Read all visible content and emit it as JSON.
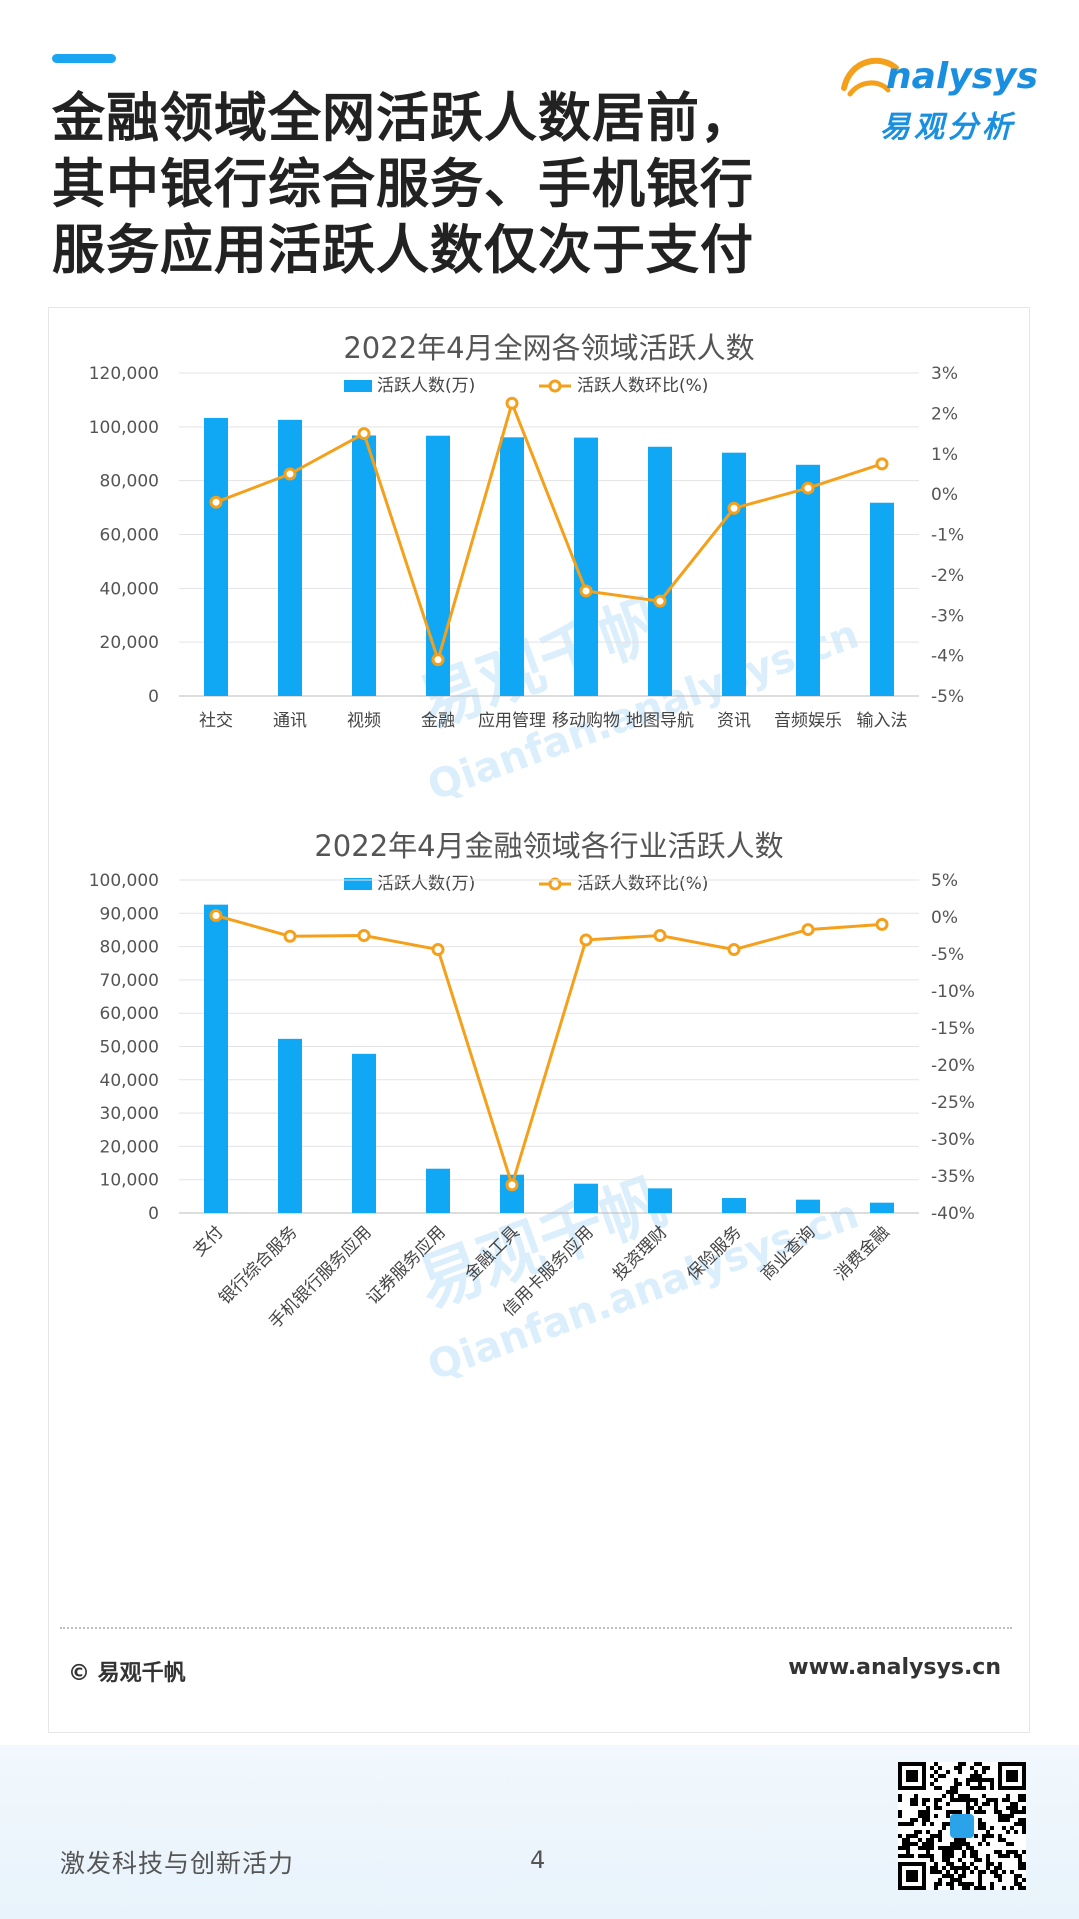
{
  "header": {
    "headline_lines": [
      "金融领域全网活跃人数居前，",
      "其中银行综合服务、手机银行",
      "服务应用活跃人数仅次于支付"
    ]
  },
  "logo": {
    "text": "nalysys",
    "cn": "易观分析"
  },
  "watermark": {
    "cn": "易观千帆",
    "en": "Qianfan.analysys.cn"
  },
  "colors": {
    "bar": "#10a8f5",
    "line": "#f5a01b",
    "accent": "#1aa5f0",
    "text": "#333333"
  },
  "chart_data": [
    {
      "type": "bar",
      "title": "2022年4月全网各领域活跃人数",
      "legend": [
        "活跃人数(万)",
        "活跃人数环比(%)"
      ],
      "legend_position": "top",
      "categories": [
        "社交",
        "通讯",
        "视频",
        "金融",
        "应用管理",
        "移动购物",
        "地图导航",
        "资讯",
        "音频娱乐",
        "输入法"
      ],
      "series": [
        {
          "name": "活跃人数(万)",
          "type": "bar",
          "axis": "left",
          "values": [
            103300,
            102600,
            96800,
            96700,
            96100,
            96000,
            92600,
            90400,
            85900,
            71800
          ]
        },
        {
          "name": "活跃人数环比(%)",
          "type": "line",
          "axis": "right",
          "values": [
            -0.2,
            0.5,
            1.5,
            -4.1,
            2.25,
            -2.4,
            -2.65,
            -0.35,
            0.15,
            0.75
          ]
        }
      ],
      "ylim": [
        0,
        120000
      ],
      "y_ticks": [
        "0",
        "20,000",
        "40,000",
        "60,000",
        "80,000",
        "100,000",
        "120,000"
      ],
      "y2lim": [
        -5,
        3
      ],
      "y2_ticks": [
        "-5%",
        "-4%",
        "-3%",
        "-2%",
        "-1%",
        "0%",
        "1%",
        "2%",
        "3%"
      ],
      "grid": true
    },
    {
      "type": "bar",
      "title": "2022年4月金融领域各行业活跃人数",
      "legend": [
        "活跃人数(万)",
        "活跃人数环比(%)"
      ],
      "legend_position": "top",
      "categories": [
        "支付",
        "银行综合服务",
        "手机银行服务应用",
        "证券服务应用",
        "金融工具",
        "信用卡服务应用",
        "投资理财",
        "保险服务",
        "商业查询",
        "消费金融"
      ],
      "series": [
        {
          "name": "活跃人数(万)",
          "type": "bar",
          "axis": "left",
          "values": [
            92600,
            52300,
            47800,
            13300,
            11500,
            8800,
            7400,
            4500,
            4000,
            3100
          ]
        },
        {
          "name": "活跃人数环比(%)",
          "type": "line",
          "axis": "right",
          "values": [
            0.2,
            -2.6,
            -2.5,
            -4.4,
            -36.2,
            -3.1,
            -2.5,
            -4.4,
            -1.7,
            -1.0
          ]
        }
      ],
      "ylim": [
        0,
        100000
      ],
      "y_ticks": [
        "0",
        "10,000",
        "20,000",
        "30,000",
        "40,000",
        "50,000",
        "60,000",
        "70,000",
        "80,000",
        "90,000",
        "100,000"
      ],
      "y2lim": [
        -40,
        5
      ],
      "y2_ticks": [
        "-40%",
        "-35%",
        "-30%",
        "-25%",
        "-20%",
        "-15%",
        "-10%",
        "-5%",
        "0%",
        "5%"
      ],
      "grid": true
    }
  ],
  "footer": {
    "copyright": "© 易观千帆",
    "website": "www.analysys.cn"
  },
  "bottom": {
    "slogan": "激发科技与创新活力",
    "page": "4"
  }
}
